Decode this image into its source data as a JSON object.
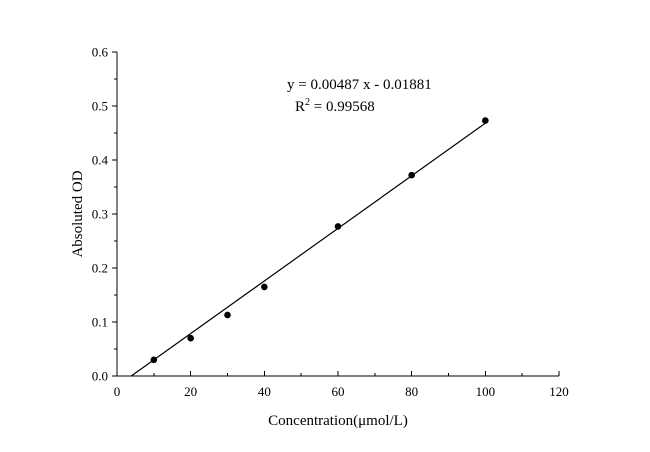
{
  "chart_data": {
    "type": "scatter",
    "title": "",
    "xlabel": "Concentration(μmol/L)",
    "ylabel": "Absoluted OD",
    "xlim": [
      0,
      120
    ],
    "ylim": [
      0,
      0.6
    ],
    "x_ticks": [
      0,
      20,
      40,
      60,
      80,
      100,
      120
    ],
    "x_tick_labels": [
      "0",
      "20",
      "40",
      "60",
      "80",
      "100",
      "120"
    ],
    "y_ticks": [
      0,
      0.1,
      0.2,
      0.3,
      0.4,
      0.5,
      0.6
    ],
    "y_tick_labels": [
      "0.0",
      "0.1",
      "0.2",
      "0.3",
      "0.4",
      "0.5",
      "0.6"
    ],
    "grid": false,
    "series": [
      {
        "x": [
          10,
          20,
          30,
          40,
          60,
          80,
          100
        ],
        "y": [
          0.03,
          0.07,
          0.113,
          0.165,
          0.277,
          0.372,
          0.473
        ]
      }
    ],
    "fit_line": {
      "slope": 0.00487,
      "intercept": -0.01881,
      "x_range": [
        3.86,
        100
      ]
    },
    "annotations": {
      "equation": "y = 0.00487 x - 0.01881",
      "r_squared_prefix": "R",
      "r_squared_sup": "2",
      "r_squared_suffix": " = 0.99568"
    }
  }
}
